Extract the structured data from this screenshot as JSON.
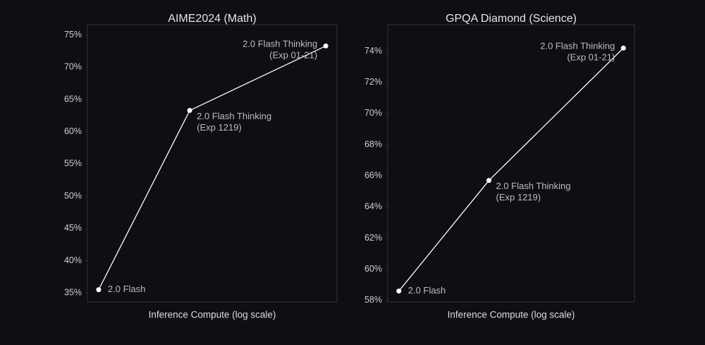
{
  "chart_data": [
    {
      "type": "line",
      "title": "AIME2024 (Math)",
      "xlabel": "Inference Compute (log scale)",
      "categories": [
        [
          "2.0 Flash"
        ],
        [
          "2.0 Flash Thinking",
          "(Exp 1219)"
        ],
        [
          "2.0 Flash Thinking",
          "(Exp 01-21)"
        ]
      ],
      "values": [
        35.5,
        63.3,
        73.3
      ],
      "color": "#ffffff",
      "ylim": [
        33.6,
        76.6
      ],
      "yticks": [
        {
          "value": 35,
          "label": "35%"
        },
        {
          "value": 40,
          "label": "40%"
        },
        {
          "value": 45,
          "label": "45%"
        },
        {
          "value": 50,
          "label": "50%"
        },
        {
          "value": 55,
          "label": "55%"
        },
        {
          "value": 60,
          "label": "60%"
        },
        {
          "value": 65,
          "label": "65%"
        },
        {
          "value": 70,
          "label": "70%"
        },
        {
          "value": 75,
          "label": "75%"
        }
      ]
    },
    {
      "type": "line",
      "title": "GPQA Diamond (Science)",
      "xlabel": "Inference Compute (log scale)",
      "categories": [
        [
          "2.0 Flash"
        ],
        [
          "2.0 Flash Thinking",
          "(Exp 1219)"
        ],
        [
          "2.0 Flash Thinking",
          "(Exp 01-21)"
        ]
      ],
      "values": [
        58.6,
        65.7,
        74.2
      ],
      "color": "#ffffff",
      "ylim": [
        57.9,
        75.7
      ],
      "yticks": [
        {
          "value": 58,
          "label": "58%"
        },
        {
          "value": 60,
          "label": "60%"
        },
        {
          "value": 62,
          "label": "62%"
        },
        {
          "value": 64,
          "label": "64%"
        },
        {
          "value": 66,
          "label": "66%"
        },
        {
          "value": 68,
          "label": "68%"
        },
        {
          "value": 70,
          "label": "70%"
        },
        {
          "value": 72,
          "label": "72%"
        },
        {
          "value": 74,
          "label": "74%"
        }
      ]
    }
  ]
}
